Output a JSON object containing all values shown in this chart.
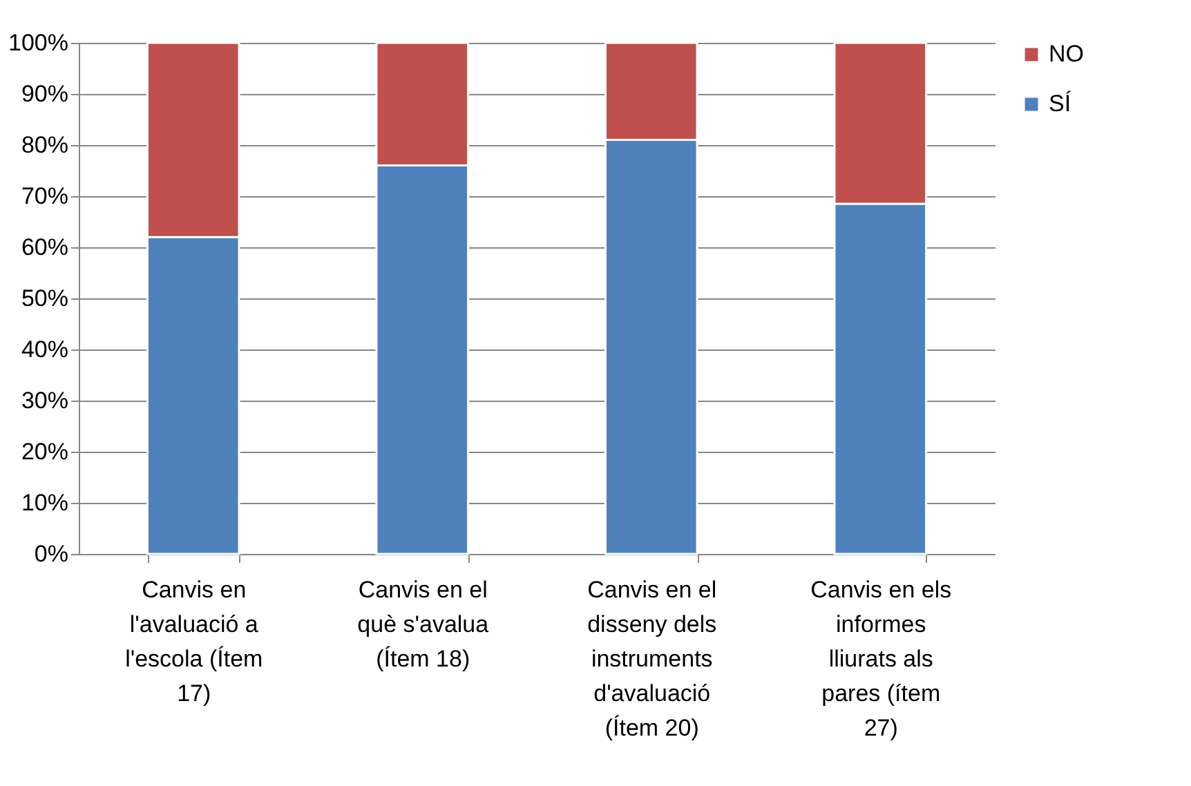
{
  "chart_data": {
    "type": "bar",
    "stacked": true,
    "categories": [
      "Canvis en l'avaluació a l'escola (Ítem 17)",
      "Canvis en el què s'avalua (Ítem 18)",
      "Canvis en el disseny dels instruments d'avaluació (Ítem 20)",
      "Canvis en els informes lliurats als pares (ítem 27)"
    ],
    "series": [
      {
        "name": "SÍ",
        "color": "#4f81bd",
        "values": [
          62,
          76,
          81,
          68.5
        ]
      },
      {
        "name": "NO",
        "color": "#c0504d",
        "values": [
          38,
          24,
          19,
          31.5
        ]
      }
    ],
    "ylim": [
      0,
      100
    ],
    "yticks": [
      {
        "value": 0,
        "label": "0%"
      },
      {
        "value": 10,
        "label": "10%"
      },
      {
        "value": 20,
        "label": "20%"
      },
      {
        "value": 30,
        "label": "30%"
      },
      {
        "value": 40,
        "label": "40%"
      },
      {
        "value": 50,
        "label": "50%"
      },
      {
        "value": 60,
        "label": "60%"
      },
      {
        "value": 70,
        "label": "70%"
      },
      {
        "value": 80,
        "label": "80%"
      },
      {
        "value": 90,
        "label": "90%"
      },
      {
        "value": 100,
        "label": "100%"
      }
    ],
    "grid": "y",
    "legend": "right"
  }
}
